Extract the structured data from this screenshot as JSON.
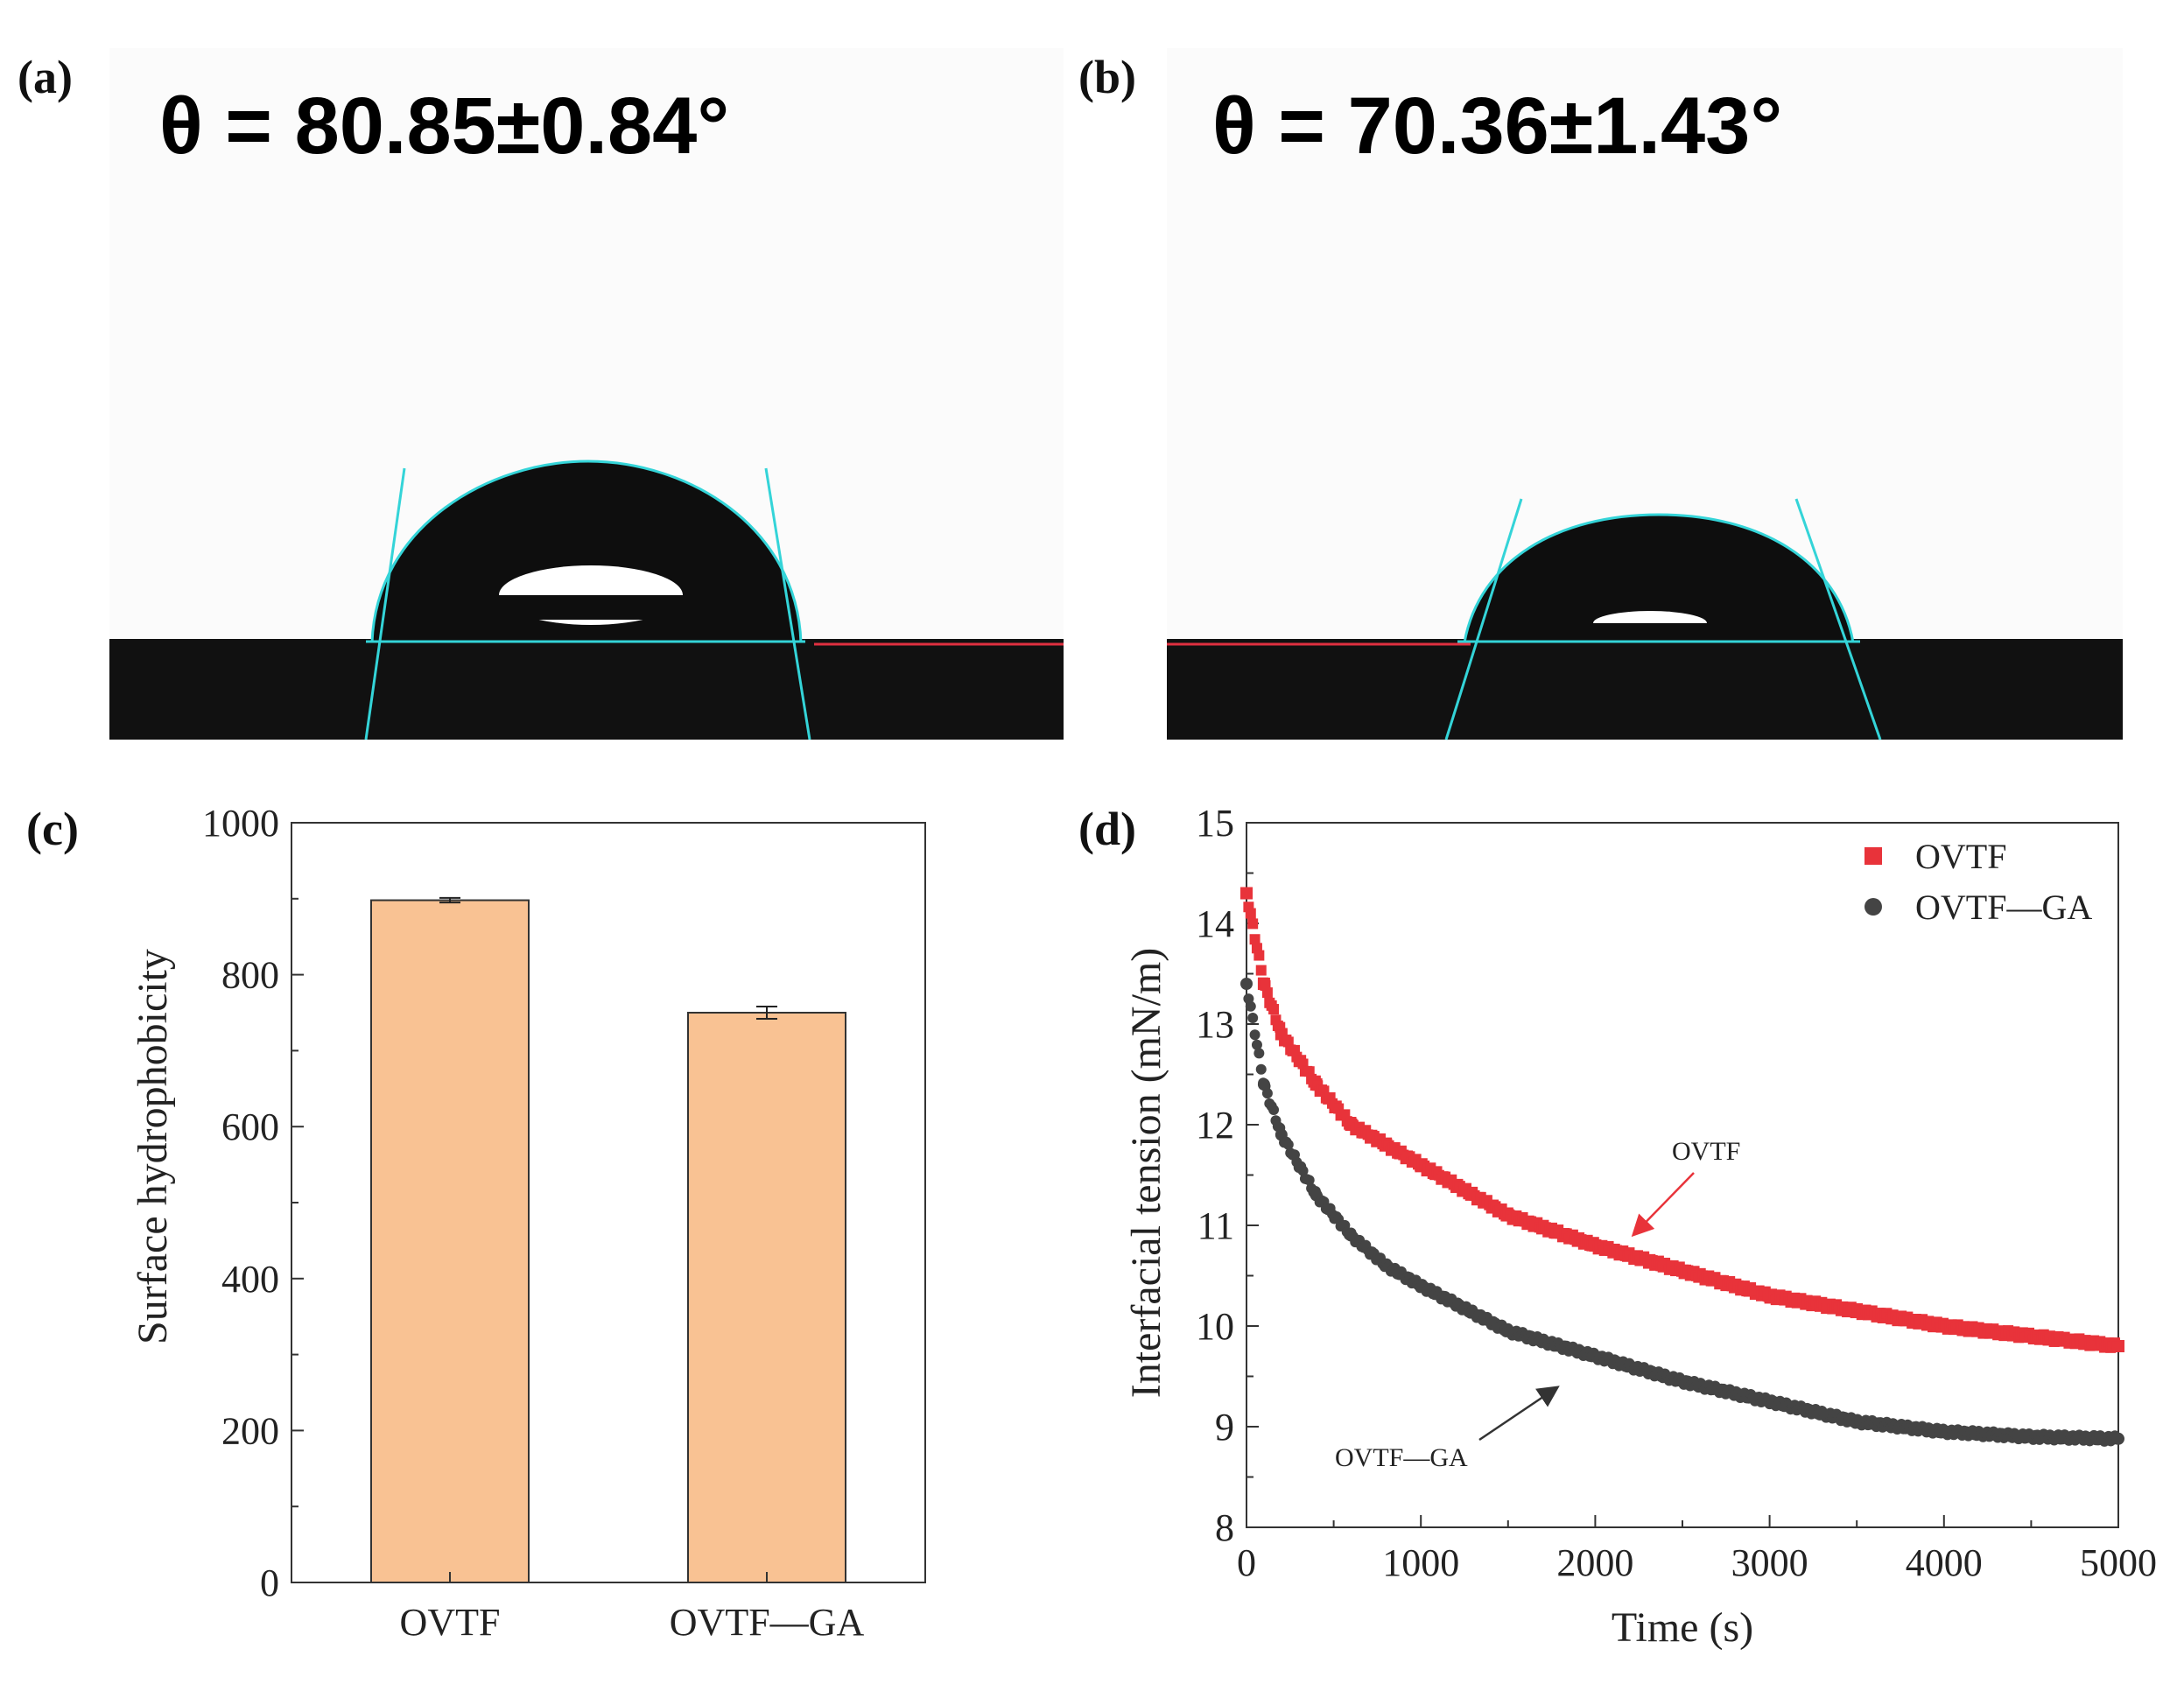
{
  "panels": {
    "a": {
      "label": "(a)",
      "angle_text": "θ = 80.85±0.84°",
      "contact_angle_deg": 80.85
    },
    "b": {
      "label": "(b)",
      "angle_text": "θ = 70.36±1.43°",
      "contact_angle_deg": 70.36
    },
    "c": {
      "label": "(c)"
    },
    "d": {
      "label": "(d)"
    }
  },
  "colors": {
    "bar_fill": "#f9c293",
    "series_ovtf": "#e8333a",
    "series_ovtf_ga": "#444444",
    "tangent": "#34d4d8"
  },
  "chart_data": [
    {
      "id": "c",
      "type": "bar",
      "title": "",
      "xlabel": "",
      "ylabel": "Surface hydrophobicity",
      "categories": [
        "OVTF",
        "OVTF—GA"
      ],
      "values": [
        898,
        750
      ],
      "errors": [
        3,
        8
      ],
      "ylim": [
        0,
        1000
      ],
      "yticks": [
        0,
        200,
        400,
        600,
        800,
        1000
      ],
      "ytick_labels": [
        "0",
        "200",
        "400",
        "600",
        "800",
        "1000"
      ]
    },
    {
      "id": "d",
      "type": "scatter",
      "title": "",
      "xlabel": "Time (s)",
      "ylabel": "Interfacial tension (mN/m)",
      "xlim": [
        0,
        5000
      ],
      "ylim": [
        8,
        15
      ],
      "xticks": [
        0,
        1000,
        2000,
        3000,
        4000,
        5000
      ],
      "xtick_labels": [
        "0",
        "1000",
        "2000",
        "3000",
        "4000",
        "5000"
      ],
      "yticks": [
        8,
        9,
        10,
        11,
        12,
        13,
        14,
        15
      ],
      "ytick_labels": [
        "8",
        "9",
        "10",
        "11",
        "12",
        "13",
        "14",
        "15"
      ],
      "legend_position": "top-right",
      "series": [
        {
          "name": "OVTF",
          "marker": "square",
          "x": [
            0,
            100,
            200,
            400,
            600,
            800,
            1000,
            1500,
            2000,
            2500,
            3000,
            3500,
            4000,
            4500,
            5000
          ],
          "y": [
            14.3,
            13.4,
            12.9,
            12.4,
            12.0,
            11.8,
            11.6,
            11.1,
            10.8,
            10.55,
            10.3,
            10.15,
            10.0,
            9.9,
            9.8
          ]
        },
        {
          "name": "OVTF—GA",
          "marker": "circle",
          "x": [
            0,
            100,
            200,
            400,
            600,
            800,
            1000,
            1500,
            2000,
            2500,
            3000,
            3500,
            4000,
            4500,
            5000
          ],
          "y": [
            13.4,
            12.4,
            11.9,
            11.3,
            10.9,
            10.6,
            10.4,
            9.95,
            9.7,
            9.45,
            9.25,
            9.05,
            8.95,
            8.9,
            8.88
          ]
        }
      ],
      "annotations": [
        {
          "text": "OVTF",
          "target_x": 2200,
          "target_y": 10.7
        },
        {
          "text": "OVTF—GA",
          "target_x": 1700,
          "target_y": 9.6
        }
      ]
    }
  ]
}
